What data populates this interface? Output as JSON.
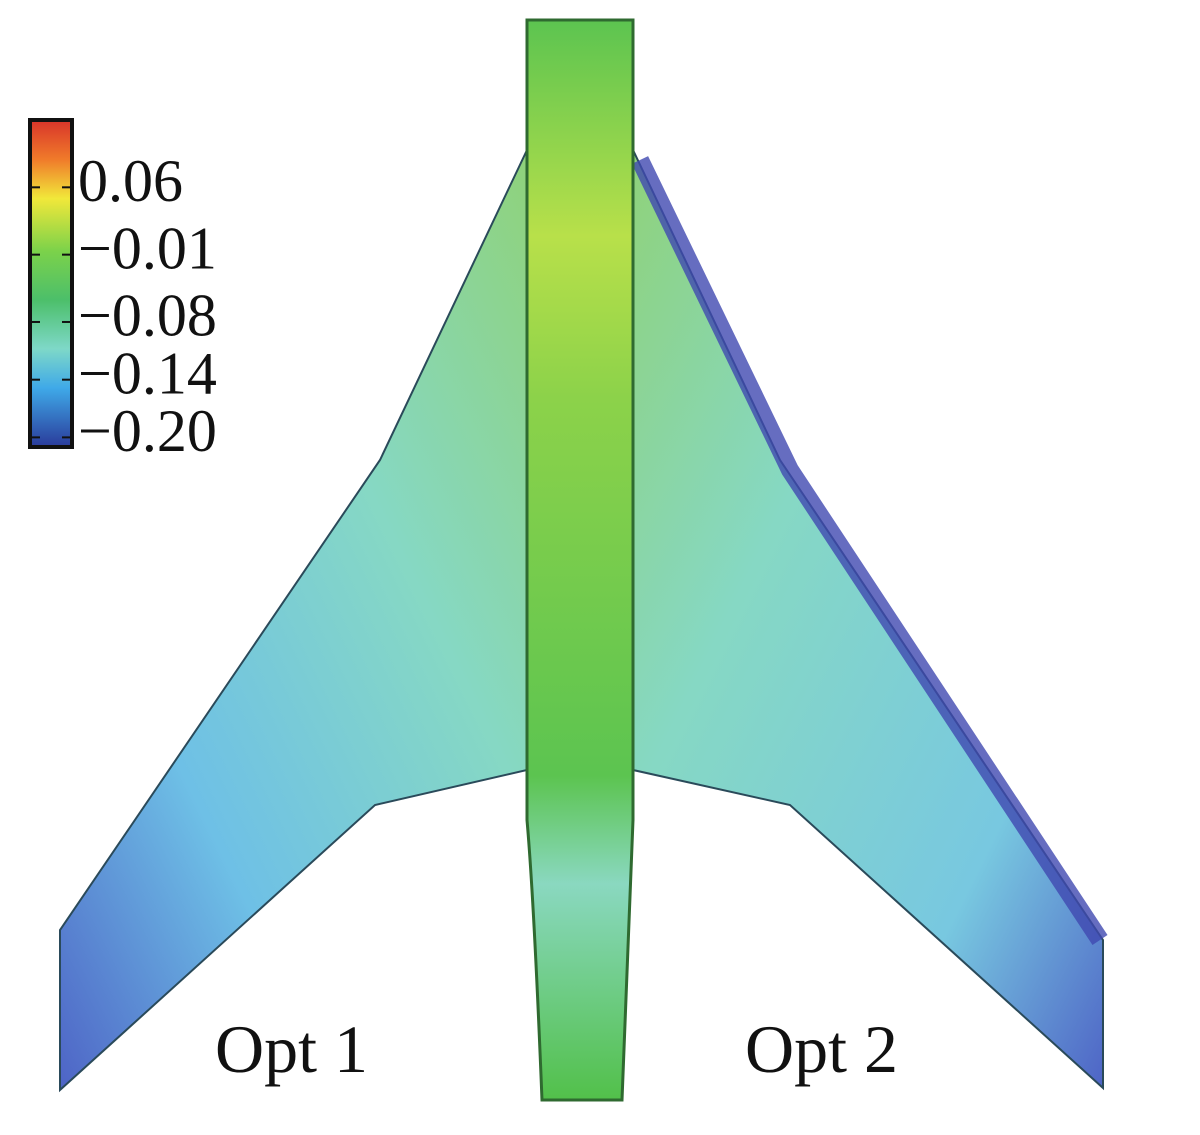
{
  "colorbar": {
    "lim": [
      -0.21,
      0.13
    ],
    "ticks": [
      0.06,
      {
        "value": -0.01,
        "label": "−0.01"
      },
      {
        "value": -0.08,
        "label": "−0.08"
      },
      {
        "value": -0.14,
        "label": "−0.14"
      },
      {
        "value": -0.2,
        "label": "−0.20"
      }
    ]
  },
  "labels": [
    "Opt 1",
    "Opt 2"
  ]
}
